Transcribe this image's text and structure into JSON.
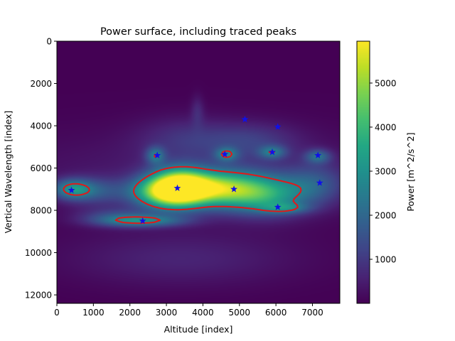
{
  "chart_data": {
    "type": "heatmap",
    "title": "Power surface, including traced peaks",
    "xlabel": "Altitude [index]",
    "ylabel": "Vertical Wavelength [index]",
    "xlim": [
      0,
      7750
    ],
    "ylim": [
      12400,
      0
    ],
    "x_ticks": [
      0,
      1000,
      2000,
      3000,
      4000,
      5000,
      6000,
      7000
    ],
    "y_ticks": [
      0,
      2000,
      4000,
      6000,
      8000,
      10000,
      12000
    ],
    "colorbar": {
      "label": "Power [m^2/s^2]",
      "range": [
        0,
        5950
      ],
      "ticks": [
        1000,
        2000,
        3000,
        4000,
        5000
      ],
      "colormap": "viridis"
    },
    "power_blobs": [
      {
        "x": 3350,
        "y": 6950,
        "sx": 550,
        "sy": 620,
        "a": 5900
      },
      {
        "x": 2700,
        "y": 7150,
        "sx": 550,
        "sy": 520,
        "a": 2600
      },
      {
        "x": 4100,
        "y": 6950,
        "sx": 750,
        "sy": 550,
        "a": 2700
      },
      {
        "x": 4900,
        "y": 7050,
        "sx": 750,
        "sy": 650,
        "a": 2700
      },
      {
        "x": 5850,
        "y": 7300,
        "sx": 700,
        "sy": 650,
        "a": 2300
      },
      {
        "x": 6250,
        "y": 7900,
        "sx": 450,
        "sy": 180,
        "a": 1500
      },
      {
        "x": 420,
        "y": 7000,
        "sx": 380,
        "sy": 330,
        "a": 2400
      },
      {
        "x": 1100,
        "y": 7100,
        "sx": 600,
        "sy": 450,
        "a": 1300
      },
      {
        "x": 2350,
        "y": 8500,
        "sx": 800,
        "sy": 200,
        "a": 2300
      },
      {
        "x": 1600,
        "y": 8300,
        "sx": 700,
        "sy": 300,
        "a": 1100
      },
      {
        "x": 2700,
        "y": 5400,
        "sx": 180,
        "sy": 280,
        "a": 1900
      },
      {
        "x": 4650,
        "y": 5350,
        "sx": 220,
        "sy": 230,
        "a": 1900
      },
      {
        "x": 5900,
        "y": 5250,
        "sx": 260,
        "sy": 220,
        "a": 1800
      },
      {
        "x": 7150,
        "y": 5450,
        "sx": 240,
        "sy": 230,
        "a": 1800
      },
      {
        "x": 7050,
        "y": 6800,
        "sx": 600,
        "sy": 700,
        "a": 1400
      },
      {
        "x": 5300,
        "y": 4700,
        "sx": 900,
        "sy": 600,
        "a": 900
      },
      {
        "x": 3500,
        "y": 4600,
        "sx": 900,
        "sy": 700,
        "a": 700
      },
      {
        "x": 3850,
        "y": 3300,
        "sx": 120,
        "sy": 500,
        "a": 600
      },
      {
        "x": 3400,
        "y": 10300,
        "sx": 2200,
        "sy": 900,
        "a": 600
      },
      {
        "x": 4000,
        "y": 6200,
        "sx": 4000,
        "sy": 1400,
        "a": 450
      }
    ],
    "contour_level": 2600,
    "contour_color": "#e0191b",
    "peak_marker_color": "#1010e8",
    "peaks": [
      {
        "x": 400,
        "y": 7050
      },
      {
        "x": 2350,
        "y": 8500
      },
      {
        "x": 2750,
        "y": 5400
      },
      {
        "x": 3300,
        "y": 6950
      },
      {
        "x": 4600,
        "y": 5350
      },
      {
        "x": 4850,
        "y": 7000
      },
      {
        "x": 5150,
        "y": 3700
      },
      {
        "x": 5900,
        "y": 5250
      },
      {
        "x": 6050,
        "y": 4050
      },
      {
        "x": 6050,
        "y": 7850
      },
      {
        "x": 7150,
        "y": 5400
      },
      {
        "x": 7200,
        "y": 6700
      }
    ]
  }
}
